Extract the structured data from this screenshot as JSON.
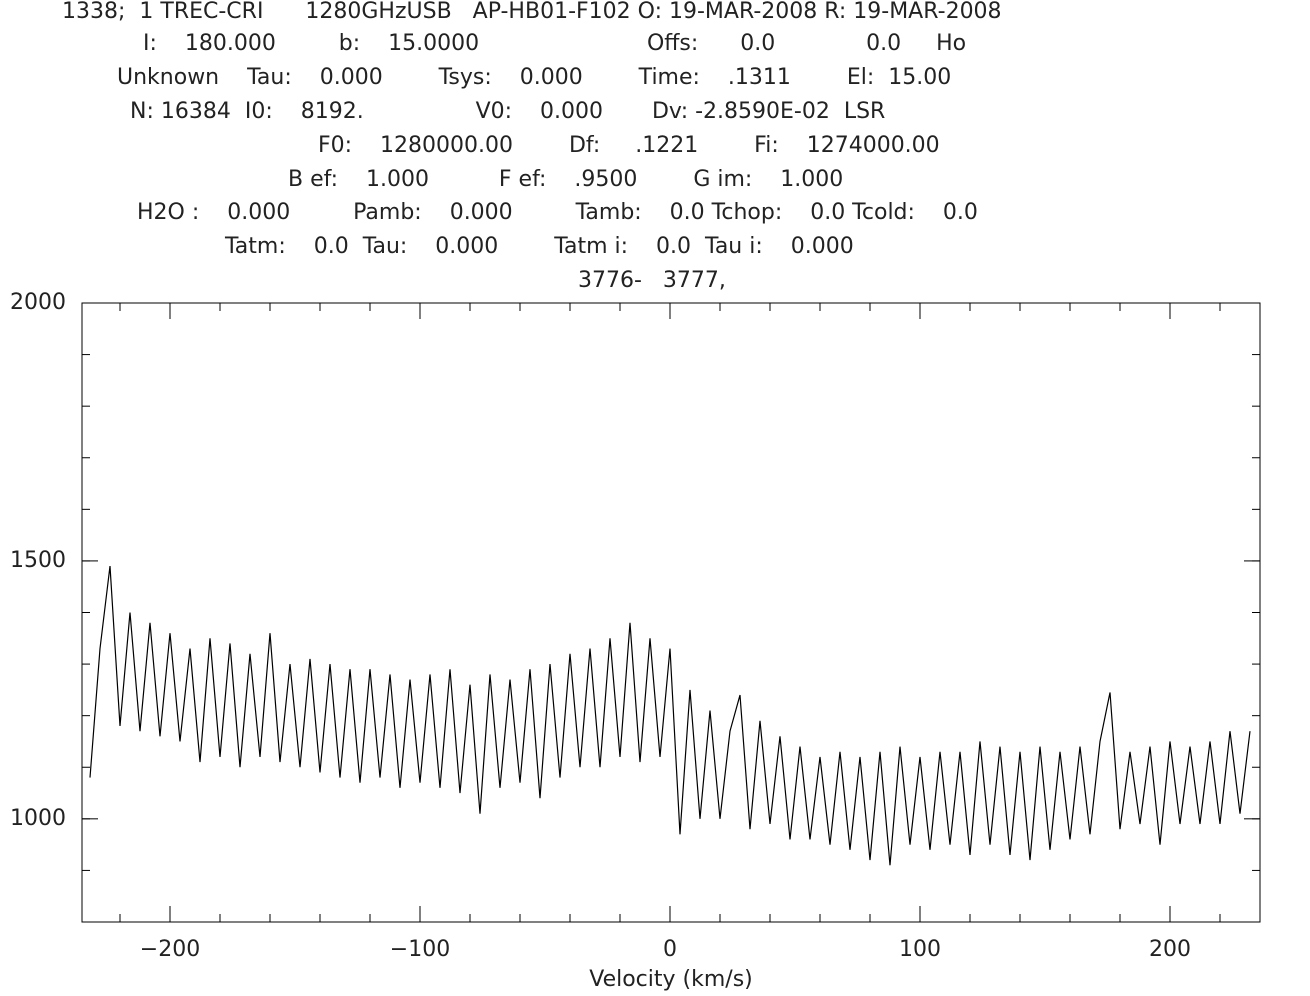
{
  "chart_data": {
    "type": "line",
    "header": [
      "1338;  1 TREC-CRI      1280GHzUSB   AP-HB01-F102 O: 19-MAR-2008 R: 19-MAR-2008",
      "I:    180.000         b:    15.0000                        Offs:      0.0             0.0     Ho",
      "Unknown    Tau:    0.000        Tsys:    0.000        Time:    .1311        El:  15.00",
      "N: 16384  I0:    8192.                V0:    0.000       Dv: -2.8590E-02  LSR",
      "F0:    1280000.00        Df:     .1221        Fi:    1274000.00",
      "B ef:    1.000          F ef:    .9500        G im:    1.000",
      "H2O :    0.000         Pamb:    0.000         Tamb:    0.0 Tchop:    0.0 Tcold:    0.0",
      "Tatm:    0.0  Tau:    0.000        Tatm i:    0.0  Tau i:    0.000",
      "3776-   3777,"
    ],
    "x_label": "Velocity (km/s)",
    "color": "#000000",
    "xlim": [
      -235.2,
      236
    ],
    "ylim": [
      800,
      2000
    ],
    "xticks": [
      {
        "value": -200,
        "label": "−200"
      },
      {
        "value": -100,
        "label": "−100"
      },
      0,
      100,
      200
    ],
    "yticks": [
      1000,
      1500,
      2000
    ],
    "x": [
      -232,
      -228,
      -224,
      -220,
      -216,
      -212,
      -208,
      -204,
      -200,
      -196,
      -192,
      -188,
      -184,
      -180,
      -176,
      -172,
      -168,
      -164,
      -160,
      -156,
      -152,
      -148,
      -144,
      -140,
      -136,
      -132,
      -128,
      -124,
      -120,
      -116,
      -112,
      -108,
      -104,
      -100,
      -96,
      -92,
      -88,
      -84,
      -80,
      -76,
      -72,
      -68,
      -64,
      -60,
      -56,
      -52,
      -48,
      -44,
      -40,
      -36,
      -32,
      -28,
      -24,
      -20,
      -16,
      -12,
      -8,
      -4,
      0,
      4,
      8,
      12,
      16,
      20,
      24,
      28,
      32,
      36,
      40,
      44,
      48,
      52,
      56,
      60,
      64,
      68,
      72,
      76,
      80,
      84,
      88,
      92,
      96,
      100,
      104,
      108,
      112,
      116,
      120,
      124,
      128,
      132,
      136,
      140,
      144,
      148,
      152,
      156,
      160,
      164,
      168,
      172,
      176,
      180,
      184,
      188,
      192,
      196,
      200,
      204,
      208,
      212,
      216,
      220,
      224,
      228,
      232
    ],
    "values": [
      1080,
      1330,
      1490,
      1180,
      1400,
      1170,
      1380,
      1160,
      1360,
      1150,
      1330,
      1110,
      1350,
      1120,
      1340,
      1100,
      1320,
      1120,
      1360,
      1110,
      1300,
      1100,
      1310,
      1090,
      1300,
      1080,
      1290,
      1070,
      1290,
      1080,
      1280,
      1060,
      1270,
      1070,
      1280,
      1060,
      1290,
      1050,
      1260,
      1010,
      1280,
      1060,
      1270,
      1070,
      1290,
      1040,
      1300,
      1080,
      1320,
      1100,
      1330,
      1100,
      1350,
      1120,
      1380,
      1110,
      1350,
      1120,
      1330,
      970,
      1250,
      1000,
      1210,
      1000,
      1170,
      1240,
      980,
      1190,
      990,
      1160,
      960,
      1140,
      960,
      1120,
      950,
      1130,
      940,
      1120,
      920,
      1130,
      910,
      1140,
      950,
      1120,
      940,
      1130,
      950,
      1130,
      930,
      1150,
      950,
      1140,
      930,
      1130,
      920,
      1140,
      940,
      1130,
      960,
      1140,
      970,
      1150,
      1245,
      980,
      1130,
      990,
      1140,
      950,
      1150,
      990,
      1140,
      990,
      1150,
      990,
      1170,
      1010,
      1170
    ]
  }
}
